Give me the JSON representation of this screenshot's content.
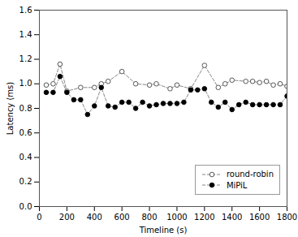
{
  "chart_data": {
    "type": "line",
    "xlabel": "Timeline (s)",
    "ylabel": "Latency (ms)",
    "color": "#888888",
    "series": [
      {
        "name": "round-robin",
        "marker": "open_circle",
        "line_style": "dashed",
        "x": [
          50,
          100,
          150,
          200,
          300,
          400,
          450,
          500,
          600,
          700,
          800,
          850,
          950,
          1000,
          1100,
          1200,
          1300,
          1350,
          1400,
          1500,
          1550,
          1600,
          1650,
          1700,
          1750,
          1800
        ],
        "values": [
          0.99,
          1.0,
          1.16,
          0.94,
          0.97,
          0.97,
          1.0,
          1.02,
          1.1,
          1.0,
          0.99,
          1.0,
          0.96,
          0.99,
          0.96,
          1.15,
          0.97,
          1.0,
          1.03,
          1.02,
          1.02,
          1.01,
          1.02,
          0.99,
          1.0,
          0.98
        ]
      },
      {
        "name": "MiPiL",
        "marker": "circle",
        "line_style": "dashed",
        "x": [
          50,
          100,
          150,
          200,
          250,
          300,
          350,
          400,
          450,
          500,
          550,
          600,
          650,
          700,
          750,
          800,
          850,
          900,
          950,
          1000,
          1050,
          1100,
          1150,
          1200,
          1250,
          1300,
          1350,
          1400,
          1450,
          1500,
          1550,
          1600,
          1650,
          1700,
          1750,
          1800
        ],
        "values": [
          0.93,
          0.93,
          1.06,
          0.93,
          0.87,
          0.87,
          0.75,
          0.82,
          0.97,
          0.82,
          0.81,
          0.85,
          0.85,
          0.8,
          0.85,
          0.82,
          0.83,
          0.84,
          0.84,
          0.84,
          0.85,
          0.95,
          0.95,
          0.96,
          0.85,
          0.81,
          0.85,
          0.79,
          0.83,
          0.85,
          0.83,
          0.83,
          0.83,
          0.83,
          0.83,
          0.9
        ]
      }
    ],
    "xlim": [
      0,
      1800
    ],
    "ylim": [
      0.0,
      1.6
    ],
    "xticks": [
      0,
      200,
      400,
      600,
      800,
      1000,
      1200,
      1400,
      1600,
      1800
    ],
    "yticks": [
      {
        "value": 0,
        "label": "0.0"
      },
      0.2,
      0.4,
      0.6,
      0.8,
      {
        "value": 1,
        "label": "1.0"
      },
      1.2,
      1.4,
      1.6
    ],
    "grid": false,
    "legend": "lower right"
  }
}
